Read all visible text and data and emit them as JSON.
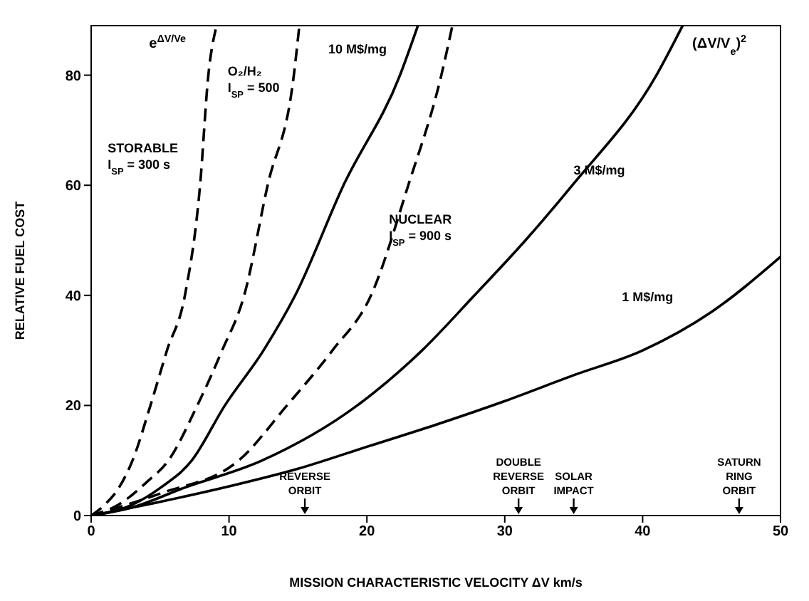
{
  "chart_data": {
    "type": "line",
    "xlabel": "MISSION CHARACTERISTIC VELOCITY  ΔV  km/s",
    "ylabel": "RELATIVE FUEL COST",
    "xlim": [
      0,
      50
    ],
    "ylim": [
      0,
      89
    ],
    "xticks": [
      0,
      10,
      20,
      30,
      40,
      50
    ],
    "yticks": [
      0,
      20,
      40,
      60,
      80
    ],
    "grid": false,
    "legend": false,
    "marker": "none",
    "series": [
      {
        "name": "STORABLE\nI$_{SP}$ = 300 s",
        "color": "#000000",
        "line_style": "dashed",
        "x": [
          0,
          1,
          2,
          3,
          4.3,
          5.5,
          6.8,
          7.9,
          8.5,
          9.1
        ],
        "values": [
          0,
          2,
          5,
          10,
          20,
          30,
          40,
          60,
          80,
          89
        ]
      },
      {
        "name": "O₂/H₂\nI$_{SP}$ = 500",
        "color": "#000000",
        "line_style": "dashed",
        "x": [
          0,
          2,
          4,
          5.6,
          7.7,
          9.5,
          11.1,
          12.8,
          14.7,
          15.1
        ],
        "values": [
          0,
          2,
          6,
          10,
          20,
          30,
          40,
          60,
          80,
          89
        ]
      },
      {
        "name": "10 M$/mg",
        "color": "#000000",
        "line_style": "solid",
        "x": [
          0,
          3,
          5,
          7.3,
          9.7,
          12.5,
          14.8,
          18.3,
          22.4,
          23.7
        ],
        "values": [
          0,
          2,
          5,
          10,
          20,
          30,
          40,
          60,
          80,
          89
        ]
      },
      {
        "name": "NUCLEAR\nI$_{SP}$ = 900 s",
        "color": "#000000",
        "line_style": "dashed",
        "x": [
          0,
          5,
          10.7,
          14.2,
          17.5,
          20.3,
          23,
          25.4,
          26.2
        ],
        "values": [
          0,
          4,
          10,
          20,
          30,
          40,
          60,
          80,
          89
        ]
      },
      {
        "name": "3 M$/mg",
        "color": "#000000",
        "line_style": "solid",
        "x": [
          0,
          3,
          6.7,
          12.4,
          19.3,
          24,
          27.8,
          31.5,
          34.9,
          41,
          42.9
        ],
        "values": [
          0,
          1.5,
          5,
          10,
          20,
          30,
          40,
          50,
          60,
          80,
          89
        ]
      },
      {
        "name": "1 M$/mg",
        "color": "#000000",
        "line_style": "solid",
        "x": [
          0,
          5,
          10,
          15,
          20,
          25,
          30,
          35,
          40,
          45,
          50
        ],
        "values": [
          0,
          2.5,
          5.3,
          8.5,
          12.5,
          16.5,
          20.8,
          25.5,
          30,
          37,
          47
        ]
      }
    ],
    "annotations": [
      "e$^{ΔV/Ve}$",
      "(ΔV/V$_{e}$)$^{2}$",
      "REVERSE ORBIT",
      "DOUBLE REVERSE ORBIT",
      "SOLAR IMPACT",
      "SATURN RING ORBIT"
    ]
  }
}
